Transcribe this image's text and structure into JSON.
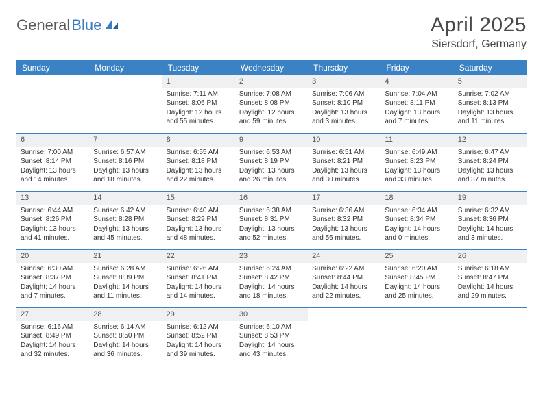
{
  "brand": {
    "text1": "General",
    "text2": "Blue"
  },
  "title": "April 2025",
  "location": "Siersdorf, Germany",
  "colors": {
    "header_bg": "#3b82c4",
    "header_text": "#ffffff",
    "date_bar_bg": "#eef0f2",
    "brand_gray": "#5a5a5a",
    "brand_blue": "#3b7bbf"
  },
  "day_names": [
    "Sunday",
    "Monday",
    "Tuesday",
    "Wednesday",
    "Thursday",
    "Friday",
    "Saturday"
  ],
  "weeks": [
    [
      null,
      null,
      {
        "n": "1",
        "sr": "7:11 AM",
        "ss": "8:06 PM",
        "dl": "12 hours and 55 minutes."
      },
      {
        "n": "2",
        "sr": "7:08 AM",
        "ss": "8:08 PM",
        "dl": "12 hours and 59 minutes."
      },
      {
        "n": "3",
        "sr": "7:06 AM",
        "ss": "8:10 PM",
        "dl": "13 hours and 3 minutes."
      },
      {
        "n": "4",
        "sr": "7:04 AM",
        "ss": "8:11 PM",
        "dl": "13 hours and 7 minutes."
      },
      {
        "n": "5",
        "sr": "7:02 AM",
        "ss": "8:13 PM",
        "dl": "13 hours and 11 minutes."
      }
    ],
    [
      {
        "n": "6",
        "sr": "7:00 AM",
        "ss": "8:14 PM",
        "dl": "13 hours and 14 minutes."
      },
      {
        "n": "7",
        "sr": "6:57 AM",
        "ss": "8:16 PM",
        "dl": "13 hours and 18 minutes."
      },
      {
        "n": "8",
        "sr": "6:55 AM",
        "ss": "8:18 PM",
        "dl": "13 hours and 22 minutes."
      },
      {
        "n": "9",
        "sr": "6:53 AM",
        "ss": "8:19 PM",
        "dl": "13 hours and 26 minutes."
      },
      {
        "n": "10",
        "sr": "6:51 AM",
        "ss": "8:21 PM",
        "dl": "13 hours and 30 minutes."
      },
      {
        "n": "11",
        "sr": "6:49 AM",
        "ss": "8:23 PM",
        "dl": "13 hours and 33 minutes."
      },
      {
        "n": "12",
        "sr": "6:47 AM",
        "ss": "8:24 PM",
        "dl": "13 hours and 37 minutes."
      }
    ],
    [
      {
        "n": "13",
        "sr": "6:44 AM",
        "ss": "8:26 PM",
        "dl": "13 hours and 41 minutes."
      },
      {
        "n": "14",
        "sr": "6:42 AM",
        "ss": "8:28 PM",
        "dl": "13 hours and 45 minutes."
      },
      {
        "n": "15",
        "sr": "6:40 AM",
        "ss": "8:29 PM",
        "dl": "13 hours and 48 minutes."
      },
      {
        "n": "16",
        "sr": "6:38 AM",
        "ss": "8:31 PM",
        "dl": "13 hours and 52 minutes."
      },
      {
        "n": "17",
        "sr": "6:36 AM",
        "ss": "8:32 PM",
        "dl": "13 hours and 56 minutes."
      },
      {
        "n": "18",
        "sr": "6:34 AM",
        "ss": "8:34 PM",
        "dl": "14 hours and 0 minutes."
      },
      {
        "n": "19",
        "sr": "6:32 AM",
        "ss": "8:36 PM",
        "dl": "14 hours and 3 minutes."
      }
    ],
    [
      {
        "n": "20",
        "sr": "6:30 AM",
        "ss": "8:37 PM",
        "dl": "14 hours and 7 minutes."
      },
      {
        "n": "21",
        "sr": "6:28 AM",
        "ss": "8:39 PM",
        "dl": "14 hours and 11 minutes."
      },
      {
        "n": "22",
        "sr": "6:26 AM",
        "ss": "8:41 PM",
        "dl": "14 hours and 14 minutes."
      },
      {
        "n": "23",
        "sr": "6:24 AM",
        "ss": "8:42 PM",
        "dl": "14 hours and 18 minutes."
      },
      {
        "n": "24",
        "sr": "6:22 AM",
        "ss": "8:44 PM",
        "dl": "14 hours and 22 minutes."
      },
      {
        "n": "25",
        "sr": "6:20 AM",
        "ss": "8:45 PM",
        "dl": "14 hours and 25 minutes."
      },
      {
        "n": "26",
        "sr": "6:18 AM",
        "ss": "8:47 PM",
        "dl": "14 hours and 29 minutes."
      }
    ],
    [
      {
        "n": "27",
        "sr": "6:16 AM",
        "ss": "8:49 PM",
        "dl": "14 hours and 32 minutes."
      },
      {
        "n": "28",
        "sr": "6:14 AM",
        "ss": "8:50 PM",
        "dl": "14 hours and 36 minutes."
      },
      {
        "n": "29",
        "sr": "6:12 AM",
        "ss": "8:52 PM",
        "dl": "14 hours and 39 minutes."
      },
      {
        "n": "30",
        "sr": "6:10 AM",
        "ss": "8:53 PM",
        "dl": "14 hours and 43 minutes."
      },
      null,
      null,
      null
    ]
  ],
  "labels": {
    "sunrise": "Sunrise: ",
    "sunset": "Sunset: ",
    "daylight": "Daylight: "
  }
}
